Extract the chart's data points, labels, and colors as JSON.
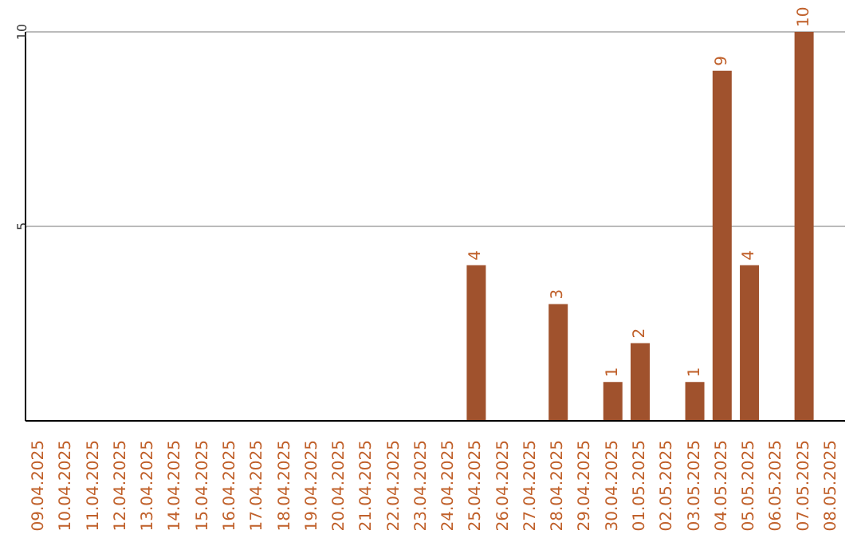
{
  "chart_data": {
    "type": "bar",
    "categories": [
      "09.04.2025",
      "10.04.2025",
      "11.04.2025",
      "12.04.2025",
      "13.04.2025",
      "14.04.2025",
      "15.04.2025",
      "16.04.2025",
      "17.04.2025",
      "18.04.2025",
      "19.04.2025",
      "20.04.2025",
      "21.04.2025",
      "22.04.2025",
      "23.04.2025",
      "24.04.2025",
      "25.04.2025",
      "26.04.2025",
      "27.04.2025",
      "28.04.2025",
      "29.04.2025",
      "30.04.2025",
      "01.05.2025",
      "02.05.2025",
      "03.05.2025",
      "04.05.2025",
      "05.05.2025",
      "06.05.2025",
      "07.05.2025",
      "08.05.2025"
    ],
    "values": [
      0,
      0,
      0,
      0,
      0,
      0,
      0,
      0,
      0,
      0,
      0,
      0,
      0,
      0,
      0,
      0,
      4,
      0,
      0,
      3,
      0,
      1,
      2,
      0,
      1,
      9,
      4,
      0,
      10,
      0
    ],
    "value_labels": [
      null,
      null,
      null,
      null,
      null,
      null,
      null,
      null,
      null,
      null,
      null,
      null,
      null,
      null,
      null,
      null,
      "4",
      null,
      null,
      "3",
      null,
      "1",
      "2",
      null,
      "1",
      "9",
      "4",
      null,
      "10",
      null
    ],
    "color": "#a0522d",
    "ylim": [
      0,
      10
    ],
    "yticks": [
      5,
      10
    ],
    "grid": "y"
  }
}
